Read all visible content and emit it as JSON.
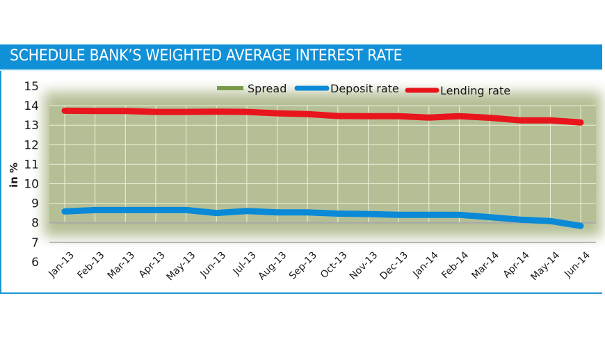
{
  "header": {
    "title": "SCHEDULE BANK’S WEIGHTED AVERAGE INTEREST RATE"
  },
  "colors": {
    "header_bg": "#1090d6",
    "spread": "#7a9a4a",
    "spread_fill": "#b5bf96",
    "deposit": "#0a8ad6",
    "lending": "#e8161c"
  },
  "chart_data": {
    "type": "line",
    "title": "SCHEDULE BANK’S WEIGHTED AVERAGE INTEREST RATE",
    "xlabel": "",
    "ylabel": "in %",
    "ylim": [
      6,
      15
    ],
    "yticks": [
      6,
      7,
      8,
      9,
      10,
      11,
      12,
      13,
      14,
      15
    ],
    "grid": true,
    "legend_position": "top",
    "categories": [
      "Jan-13",
      "Feb-13",
      "Mar-13",
      "Apr-13",
      "May-13",
      "Jun-13",
      "Jul-13",
      "Aug-13",
      "Sep-13",
      "Oct-13",
      "Nov-13",
      "Dec-13",
      "Jan-14",
      "Feb-14",
      "Mar-14",
      "Apr-14",
      "May-14",
      "Jun-14"
    ],
    "series": [
      {
        "name": "Spread",
        "kind": "area-between",
        "values": [
          5.16,
          5.08,
          5.08,
          5.03,
          5.03,
          5.19,
          5.08,
          5.08,
          5.04,
          5.0,
          5.01,
          5.05,
          4.98,
          5.05,
          5.09,
          5.09,
          5.16,
          5.3
        ]
      },
      {
        "name": "Deposit rate",
        "values": [
          8.58,
          8.65,
          8.65,
          8.65,
          8.65,
          8.5,
          8.6,
          8.53,
          8.53,
          8.47,
          8.45,
          8.41,
          8.41,
          8.41,
          8.29,
          8.16,
          8.09,
          7.84
        ]
      },
      {
        "name": "Lending rate",
        "values": [
          13.74,
          13.73,
          13.73,
          13.68,
          13.68,
          13.69,
          13.68,
          13.61,
          13.57,
          13.47,
          13.46,
          13.46,
          13.39,
          13.46,
          13.38,
          13.25,
          13.25,
          13.14
        ]
      }
    ],
    "legend": [
      "Spread",
      "Deposit rate",
      "Lending rate"
    ]
  }
}
